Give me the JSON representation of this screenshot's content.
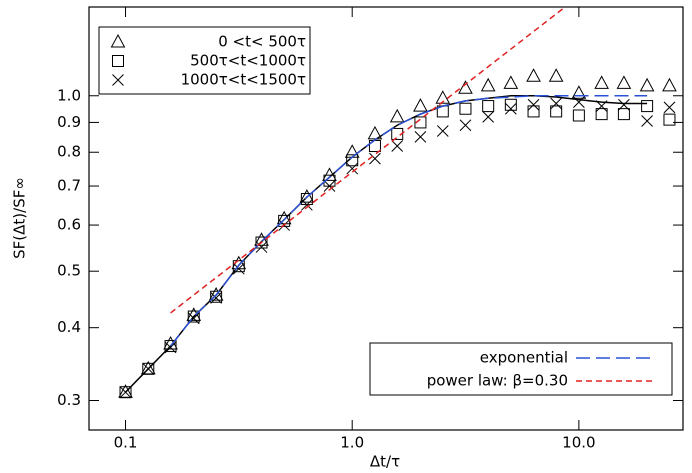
{
  "chart_data": {
    "type": "scatter",
    "xlabel": "Δt/τ",
    "ylabel": "SF(Δt)/SF∞",
    "xscale": "log",
    "yscale": "log",
    "xlim": [
      0.069,
      28.8
    ],
    "ylim": [
      0.267,
      1.42
    ],
    "xticks": [
      0.1,
      {
        "value": 1,
        "label": "1.0"
      },
      {
        "value": 10,
        "label": "10.0"
      }
    ],
    "yticks": [
      0.3,
      0.4,
      0.5,
      0.6,
      0.7,
      0.8,
      0.9,
      {
        "value": 1,
        "label": "1.0"
      }
    ],
    "series": [
      {
        "name": "0 <t< 500τ",
        "marker": "triangle",
        "color": "#000000",
        "legend": "upper left",
        "x": [
          0.1,
          0.126,
          0.158,
          0.2,
          0.251,
          0.316,
          0.398,
          0.501,
          0.631,
          0.794,
          1.0,
          1.26,
          1.58,
          2.0,
          2.51,
          3.16,
          3.98,
          5.01,
          6.31,
          7.94,
          10.0,
          12.6,
          15.8,
          20.0,
          25.1
        ],
        "values": [
          0.31,
          0.34,
          0.375,
          0.42,
          0.455,
          0.515,
          0.565,
          0.615,
          0.67,
          0.73,
          0.8,
          0.86,
          0.92,
          0.96,
          0.99,
          1.03,
          1.04,
          1.05,
          1.08,
          1.08,
          1.01,
          1.05,
          1.05,
          1.04,
          1.04
        ]
      },
      {
        "name": "500τ<t<1000τ",
        "marker": "square",
        "color": "#000000",
        "legend": "upper left",
        "x": [
          0.1,
          0.126,
          0.158,
          0.2,
          0.251,
          0.316,
          0.398,
          0.501,
          0.631,
          0.794,
          1.0,
          1.26,
          1.58,
          2.0,
          2.51,
          3.16,
          3.98,
          5.01,
          6.31,
          7.94,
          10.0,
          12.6,
          15.8,
          20.0,
          25.1
        ],
        "values": [
          0.31,
          0.34,
          0.372,
          0.418,
          0.452,
          0.51,
          0.56,
          0.61,
          0.665,
          0.715,
          0.775,
          0.82,
          0.86,
          0.9,
          0.94,
          0.95,
          0.96,
          0.965,
          0.94,
          0.94,
          0.925,
          0.93,
          0.93,
          0.96,
          0.91
        ]
      },
      {
        "name": "1000τ<t<1500τ",
        "marker": "x",
        "color": "#000000",
        "legend": "upper left",
        "x": [
          0.1,
          0.126,
          0.158,
          0.2,
          0.251,
          0.316,
          0.398,
          0.501,
          0.631,
          0.794,
          1.0,
          1.26,
          1.58,
          2.0,
          2.51,
          3.16,
          3.98,
          5.01,
          6.31,
          7.94,
          10.0,
          12.6,
          15.8,
          20.0,
          25.1
        ],
        "values": [
          0.31,
          0.34,
          0.37,
          0.415,
          0.45,
          0.505,
          0.55,
          0.6,
          0.65,
          0.7,
          0.75,
          0.78,
          0.82,
          0.85,
          0.87,
          0.89,
          0.92,
          0.95,
          0.965,
          0.97,
          0.975,
          0.96,
          0.965,
          0.905,
          0.955
        ]
      },
      {
        "marker": "line",
        "color": "#000000",
        "dash": "none",
        "x": [
          0.1,
          0.126,
          0.158,
          0.2,
          0.251,
          0.316,
          0.398,
          0.501,
          0.631,
          0.794,
          1.0,
          1.26,
          1.58,
          2.0,
          2.51,
          3.16,
          3.98,
          5.01,
          6.31,
          7.94,
          10.0,
          12.6,
          15.8,
          20.0
        ],
        "values": [
          0.31,
          0.34,
          0.372,
          0.418,
          0.455,
          0.512,
          0.562,
          0.613,
          0.67,
          0.725,
          0.785,
          0.84,
          0.89,
          0.93,
          0.96,
          0.98,
          0.99,
          1.0,
          1.0,
          0.995,
          0.985,
          0.975,
          0.97,
          0.97
        ]
      },
      {
        "name": "exponential",
        "marker": "line",
        "color": "#2a50d6",
        "dash": "14 6",
        "legend": "lower right",
        "x": [
          0.158,
          0.2,
          0.251,
          0.316,
          0.398,
          0.501,
          0.631,
          0.794,
          1.0,
          1.26,
          1.58,
          2.0,
          2.51,
          3.16,
          3.98,
          5.01,
          6.31,
          7.94,
          10.0,
          12.6,
          15.8,
          20.0
        ],
        "values": [
          0.372,
          0.418,
          0.455,
          0.512,
          0.562,
          0.613,
          0.67,
          0.725,
          0.785,
          0.84,
          0.89,
          0.93,
          0.96,
          0.98,
          0.99,
          0.995,
          1.0,
          1.0,
          1.0,
          1.0,
          1.0,
          1.0
        ]
      },
      {
        "name": "power law: β=0.30",
        "marker": "line",
        "color": "#e02020",
        "dash": "6 4",
        "legend": "lower right",
        "x": [
          0.158,
          8.7
        ],
        "values": [
          0.424,
          1.42
        ]
      }
    ]
  }
}
